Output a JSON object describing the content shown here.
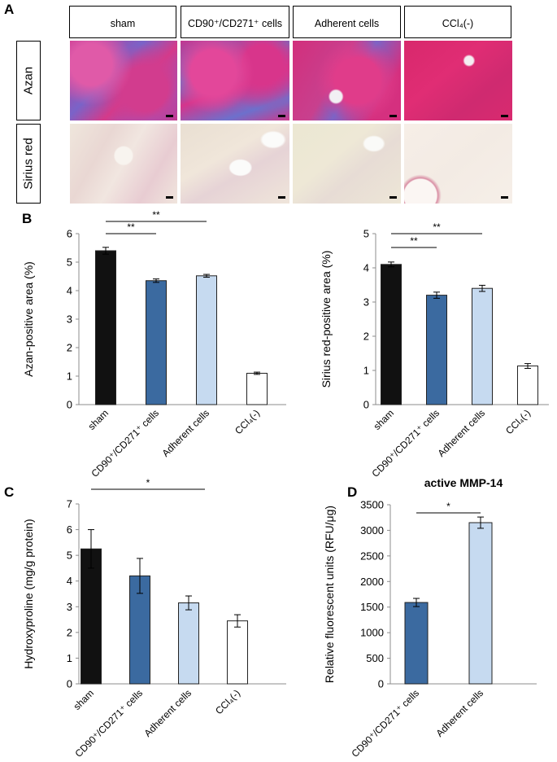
{
  "panel_a": {
    "letter": "A",
    "columns": [
      "sham",
      "CD90⁺/CD271⁺ cells",
      "Adherent cells",
      "CCl₄(-)"
    ],
    "rows": [
      "Azan",
      "Sirius red"
    ]
  },
  "chart_data": [
    {
      "panel": "B",
      "type": "bar",
      "categories": [
        "sham",
        "CD90⁺/CD271⁺ cells",
        "Adherent cells",
        "CCl₄(-)"
      ],
      "values": [
        5.4,
        4.35,
        4.52,
        1.1
      ],
      "errors": [
        0.12,
        0.06,
        0.05,
        0.04
      ],
      "colors": [
        "#111111",
        "#3b6aa0",
        "#c6daf0",
        "#ffffff"
      ],
      "ylabel": "Azan-positive area (%)",
      "ylim": [
        0,
        6
      ],
      "yticks": [
        0,
        1,
        2,
        3,
        4,
        5,
        6
      ],
      "significance": [
        {
          "from": 0,
          "to": 1,
          "label": "**"
        },
        {
          "from": 0,
          "to": 2,
          "label": "**"
        }
      ]
    },
    {
      "panel": "",
      "type": "bar",
      "categories": [
        "sham",
        "CD90⁺/CD271⁺ cells",
        "Adherent cells",
        "CCl₄(-)"
      ],
      "values": [
        4.1,
        3.2,
        3.4,
        1.13
      ],
      "errors": [
        0.07,
        0.09,
        0.09,
        0.07
      ],
      "colors": [
        "#111111",
        "#3b6aa0",
        "#c6daf0",
        "#ffffff"
      ],
      "ylabel": "Sirius red-positive area (%)",
      "ylim": [
        0,
        5
      ],
      "yticks": [
        0,
        1,
        2,
        3,
        4,
        5
      ],
      "significance": [
        {
          "from": 0,
          "to": 1,
          "label": "**"
        },
        {
          "from": 0,
          "to": 2,
          "label": "**"
        }
      ]
    },
    {
      "panel": "C",
      "type": "bar",
      "categories": [
        "sham",
        "CD90⁺/CD271⁺ cells",
        "Adherent cells",
        "CCl₄(-)"
      ],
      "values": [
        5.25,
        4.2,
        3.15,
        2.45
      ],
      "errors": [
        0.75,
        0.68,
        0.27,
        0.24
      ],
      "colors": [
        "#111111",
        "#3b6aa0",
        "#c6daf0",
        "#ffffff"
      ],
      "ylabel": "Hydroxyproline (mg/g protein)",
      "ylim": [
        0,
        7
      ],
      "yticks": [
        0,
        1,
        2,
        3,
        4,
        5,
        6,
        7
      ],
      "significance": [
        {
          "from": 0,
          "to": 2,
          "label": "*"
        }
      ]
    },
    {
      "panel": "D",
      "type": "bar",
      "title": "active MMP-14",
      "categories": [
        "CD90⁺/CD271⁺ cells",
        "Adherent cells"
      ],
      "values": [
        1590,
        3150
      ],
      "errors": [
        80,
        110
      ],
      "colors": [
        "#3b6aa0",
        "#c6daf0"
      ],
      "ylabel": "Relative fluorescent units (RFU/μg)",
      "ylim": [
        0,
        3500
      ],
      "yticks": [
        0,
        500,
        1000,
        1500,
        2000,
        2500,
        3000,
        3500
      ],
      "significance": [
        {
          "from": 0,
          "to": 1,
          "label": "*"
        }
      ]
    }
  ]
}
